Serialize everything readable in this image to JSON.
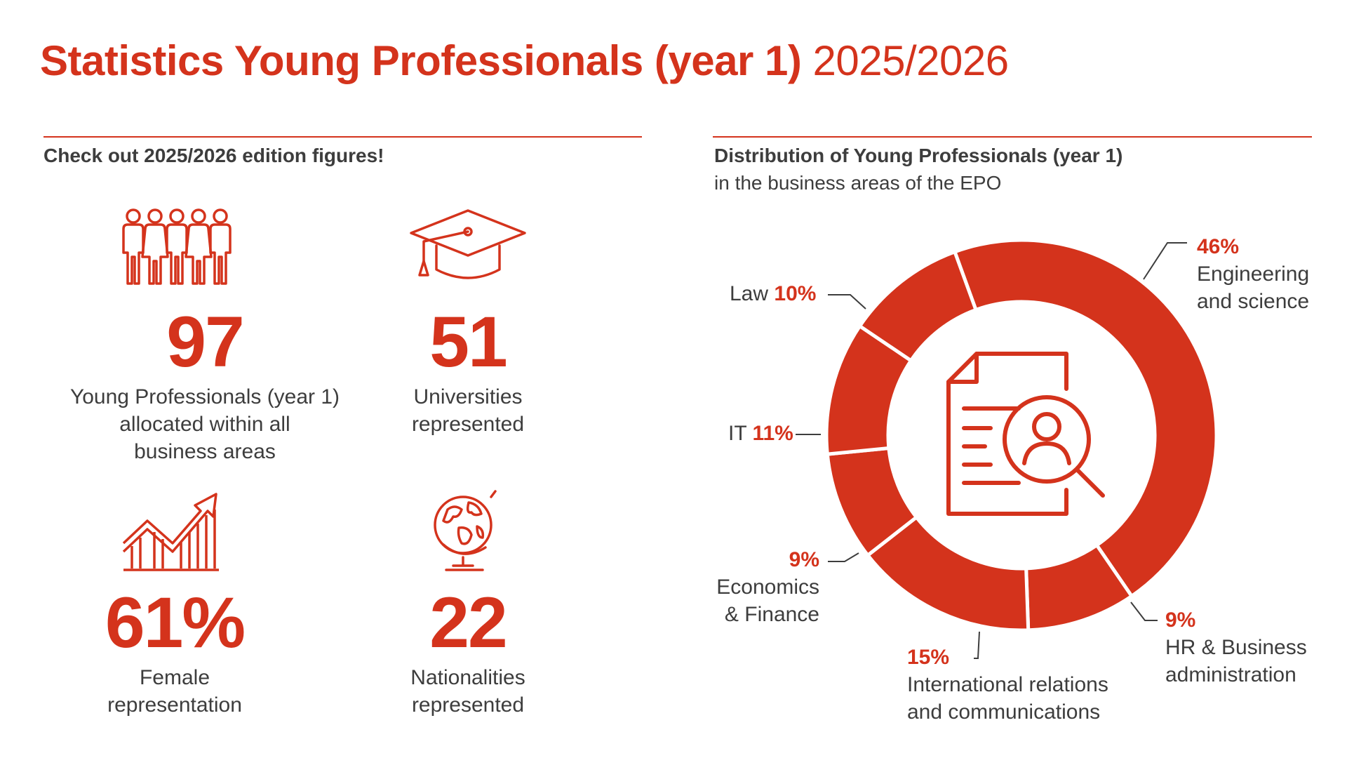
{
  "title": {
    "bold": "Statistics Young Professionals (year 1)",
    "light": "2025/2026"
  },
  "left": {
    "heading": "Check out 2025/2026 edition figures!",
    "stats": [
      {
        "number": "97",
        "label_lines": [
          "Young Professionals (year 1)",
          "allocated within all",
          "business areas"
        ],
        "icon": "people-group-icon"
      },
      {
        "number": "51",
        "label_lines": [
          "Universities",
          "represented"
        ],
        "icon": "graduation-cap-icon"
      },
      {
        "number": "61%",
        "label_lines": [
          "Female",
          "representation"
        ],
        "icon": "growth-chart-icon"
      },
      {
        "number": "22",
        "label_lines": [
          "Nationalities",
          "represented"
        ],
        "icon": "globe-icon"
      }
    ]
  },
  "right": {
    "heading": "Distribution of Young Professionals (year 1)",
    "subheading": "in the business areas of the EPO"
  },
  "colors": {
    "accent": "#d4331c",
    "text": "#3d3d3d"
  },
  "chart_data": {
    "type": "pie",
    "variant": "donut",
    "title": "Distribution of Young Professionals (year 1)",
    "subtitle": "in the business areas of the EPO",
    "center_icon": "document-search-icon",
    "slices": [
      {
        "label_lines": [
          "Engineering",
          "and science"
        ],
        "value": 46,
        "value_label": "46%"
      },
      {
        "label_lines": [
          "HR & Business",
          "administration"
        ],
        "value": 9,
        "value_label": "9%"
      },
      {
        "label_lines": [
          "International relations",
          "and communications"
        ],
        "value": 15,
        "value_label": "15%"
      },
      {
        "label_lines": [
          "Economics",
          "& Finance"
        ],
        "value": 9,
        "value_label": "9%"
      },
      {
        "label_lines": [
          "IT"
        ],
        "value": 11,
        "value_label": "11%"
      },
      {
        "label_lines": [
          "Law"
        ],
        "value": 10,
        "value_label": "10%"
      }
    ]
  }
}
